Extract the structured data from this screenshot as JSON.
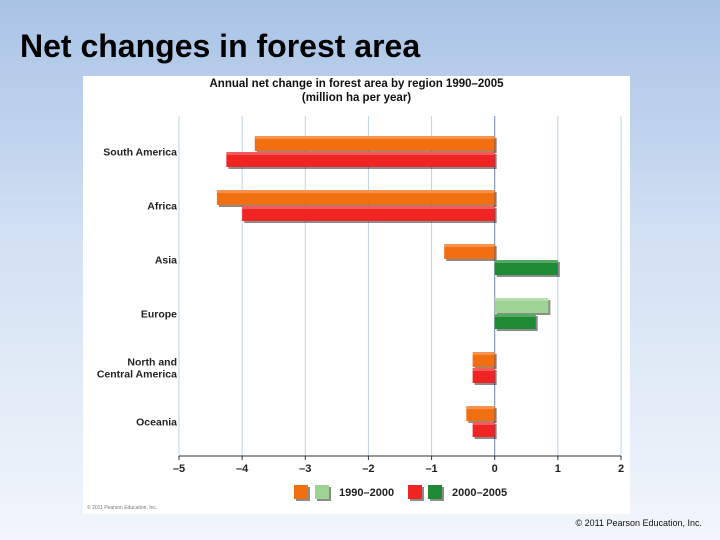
{
  "slide": {
    "title": "Net changes in forest area",
    "copyright": "© 2011 Pearson Education, Inc."
  },
  "figure": {
    "credit": "© 2011 Pearson Education, Inc."
  },
  "chart_data": {
    "type": "bar",
    "orientation": "horizontal",
    "title": "Annual net change in forest area by region 1990–2005",
    "subtitle": "(million ha per year)",
    "categories": [
      "South America",
      "Africa",
      "Asia",
      "Europe",
      "North and Central America",
      "Oceania"
    ],
    "category_labels": [
      [
        "South America"
      ],
      [
        "Africa"
      ],
      [
        "Asia"
      ],
      [
        "Europe"
      ],
      [
        "North and",
        "Central America"
      ],
      [
        "Oceania"
      ]
    ],
    "series": [
      {
        "name": "1990–2000",
        "values": [
          -3.8,
          -4.4,
          -0.8,
          0.85,
          -0.35,
          -0.45
        ],
        "loss_color": "#f26f11",
        "gain_color": "#9fd393"
      },
      {
        "name": "2000–2005",
        "values": [
          -4.25,
          -4.0,
          1.0,
          0.65,
          -0.35,
          -0.35
        ],
        "loss_color": "#f12424",
        "gain_color": "#1f8a34"
      }
    ],
    "xlim": [
      -5,
      2
    ],
    "xticks": [
      -5,
      -4,
      -3,
      -2,
      -1,
      0,
      1,
      2
    ],
    "xtick_labels": [
      "–5",
      "–4",
      "–3",
      "–2",
      "–1",
      "0",
      "1",
      "2"
    ],
    "grid": true,
    "legend": {
      "position": "bottom",
      "entries": [
        "1990–2000",
        "2000–2005"
      ]
    }
  }
}
